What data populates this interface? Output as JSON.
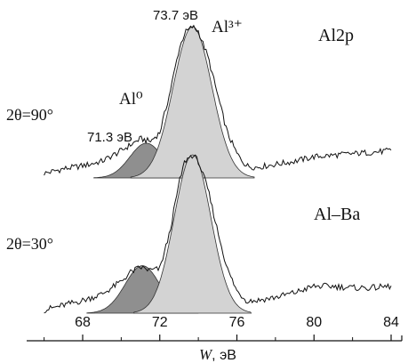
{
  "chart_data": [
    {
      "type": "line",
      "panel": "top",
      "title": "",
      "xlabel_italic": "W",
      "xlabel_unit": ", эВ",
      "xlim": [
        65.5,
        85
      ],
      "xticks": [
        "68",
        "72",
        "76",
        "80",
        "84"
      ],
      "xtick_values": [
        68,
        72,
        76,
        80,
        84
      ],
      "label_sample": "Al2p",
      "label_angle": "2θ=90°",
      "label_metal": "Al⁰",
      "label_ion": "Al³⁺",
      "annotations": [
        {
          "text": "71.3 эВ",
          "x": 71.3
        },
        {
          "text": "73.7 эВ",
          "x": 73.7
        }
      ],
      "series": [
        {
          "role": "spectrum",
          "x": [
            66,
            67,
            68,
            69,
            70,
            70.5,
            71,
            71.5,
            72,
            72.5,
            73,
            73.3,
            73.7,
            74,
            74.5,
            75,
            75.5,
            76,
            76.5,
            77,
            78,
            79,
            80,
            81,
            82,
            83,
            84
          ],
          "y": [
            0.03,
            0.06,
            0.08,
            0.11,
            0.18,
            0.22,
            0.26,
            0.24,
            0.3,
            0.55,
            0.85,
            0.96,
            1.0,
            0.97,
            0.8,
            0.55,
            0.3,
            0.16,
            0.08,
            0.07,
            0.09,
            0.11,
            0.14,
            0.15,
            0.16,
            0.17,
            0.18
          ]
        },
        {
          "role": "peak",
          "center": 71.3,
          "height": 0.23,
          "sigma": 0.85,
          "base": 0.0
        },
        {
          "role": "peak",
          "center": 73.7,
          "height": 1.0,
          "sigma": 1.0,
          "base": 0.0
        }
      ]
    },
    {
      "type": "line",
      "panel": "bottom",
      "label_sample": "Al–Ba",
      "label_angle": "2θ=30°",
      "series": [
        {
          "role": "spectrum",
          "x": [
            66,
            67,
            68,
            69,
            70,
            70.5,
            71,
            71.5,
            72,
            72.5,
            73,
            73.3,
            73.7,
            74,
            74.5,
            75,
            75.5,
            76,
            76.5,
            77,
            78,
            79,
            80,
            81,
            82,
            83,
            84
          ],
          "y": [
            0.02,
            0.05,
            0.08,
            0.12,
            0.2,
            0.26,
            0.29,
            0.27,
            0.28,
            0.5,
            0.82,
            0.96,
            1.0,
            0.96,
            0.78,
            0.52,
            0.28,
            0.14,
            0.08,
            0.08,
            0.1,
            0.13,
            0.17,
            0.17,
            0.16,
            0.16,
            0.17
          ]
        },
        {
          "role": "peak",
          "center": 71.1,
          "height": 0.3,
          "sigma": 0.9,
          "base": 0.0
        },
        {
          "role": "peak",
          "center": 73.7,
          "height": 1.0,
          "sigma": 0.95,
          "base": 0.0
        }
      ]
    }
  ],
  "colors": {
    "metal_fill": "#8f8f8f",
    "ion_fill": "#d3d3d3",
    "line": "#111111"
  }
}
